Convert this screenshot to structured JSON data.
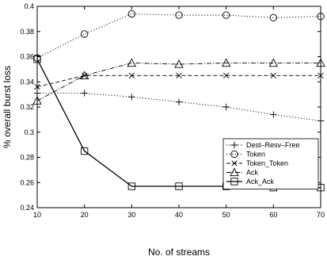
{
  "chart_data": {
    "type": "line",
    "xlabel": "No. of streams",
    "ylabel": "% overall burst loss",
    "x": [
      10,
      20,
      30,
      40,
      50,
      60,
      70
    ],
    "xlim": [
      10,
      70
    ],
    "ylim": [
      0.24,
      0.4
    ],
    "xticks": [
      "10",
      "20",
      "30",
      "40",
      "50",
      "60",
      "70"
    ],
    "yticks": [
      "0.24",
      "0.26",
      "0.28",
      "0.3",
      "0.32",
      "0.34",
      "0.36",
      "0.38",
      "0.4"
    ],
    "grid": false,
    "legend_position": "lower-right",
    "series": [
      {
        "name": "Dest–Resv–Free",
        "marker": "plus",
        "line": "dotted",
        "values": [
          0.331,
          0.331,
          0.328,
          0.324,
          0.32,
          0.314,
          0.309
        ]
      },
      {
        "name": "Token",
        "marker": "circle",
        "line": "dotted",
        "values": [
          0.359,
          0.378,
          0.394,
          0.393,
          0.393,
          0.391,
          0.392
        ]
      },
      {
        "name": "Token_Token",
        "marker": "x",
        "line": "dash",
        "values": [
          0.336,
          0.345,
          0.345,
          0.345,
          0.345,
          0.345,
          0.345
        ]
      },
      {
        "name": "Ack",
        "marker": "triangle",
        "line": "dashdot",
        "values": [
          0.325,
          0.345,
          0.355,
          0.354,
          0.355,
          0.355,
          0.355
        ]
      },
      {
        "name": "Ack_Ack",
        "marker": "square",
        "line": "solid",
        "values": [
          0.358,
          0.285,
          0.257,
          0.257,
          0.257,
          0.256,
          0.256
        ]
      }
    ]
  }
}
